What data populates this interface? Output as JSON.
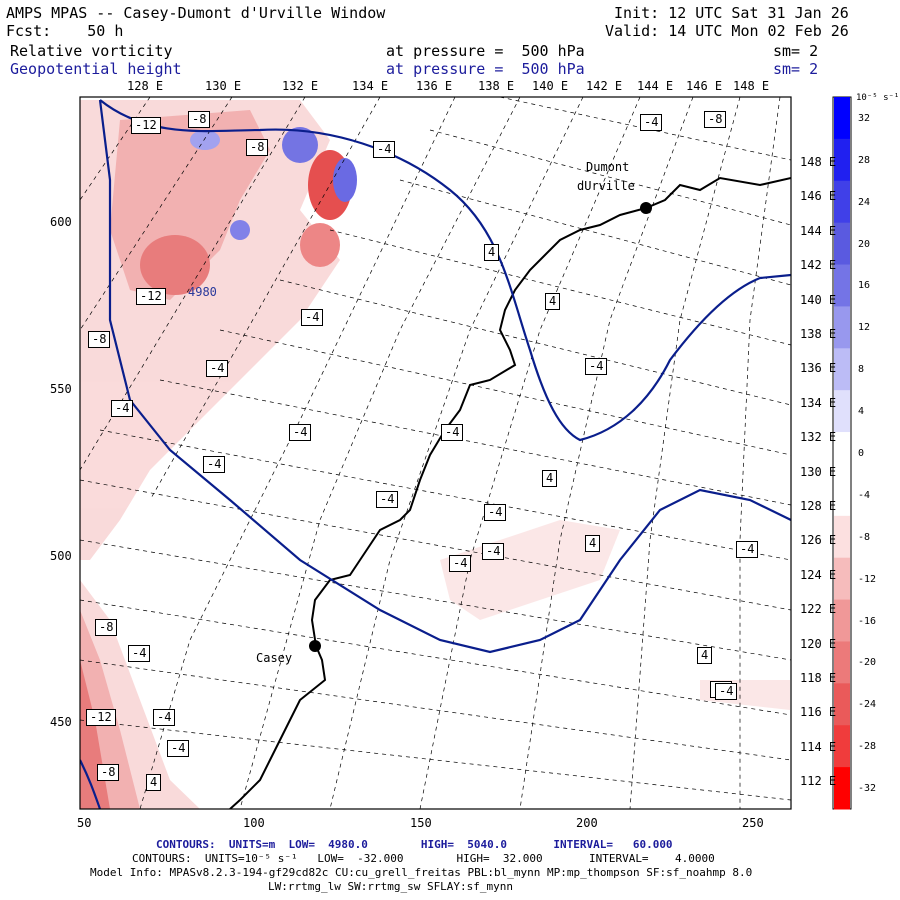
{
  "header": {
    "title": "AMPS MPAS -- Casey-Dumont d'Urville Window",
    "forecast": "Fcst:    50 h",
    "init": "Init: 12 UTC Sat 31 Jan 26",
    "valid": "Valid: 14 UTC Mon 02 Feb 26",
    "field1": {
      "name": "Relative vorticity",
      "level": "at pressure =  500 hPa",
      "smooth": "sm= 2"
    },
    "field2": {
      "name": "Geopotential height",
      "level": "at pressure =  500 hPa",
      "smooth": "sm= 2"
    }
  },
  "axes": {
    "top_lon_labels": [
      "128 E",
      "130 E",
      "132 E",
      "134 E",
      "136 E",
      "138 E",
      "140 E",
      "142 E",
      "144 E",
      "146 E",
      "148 E"
    ],
    "right_lon_labels": [
      "148 E",
      "146 E",
      "144 E",
      "142 E",
      "140 E",
      "138 E",
      "136 E",
      "134 E",
      "132 E",
      "130 E",
      "128 E",
      "126 E",
      "124 E",
      "122 E",
      "120 E",
      "118 E",
      "116 E",
      "114 E",
      "112 E"
    ],
    "left_ticks": [
      "600",
      "550",
      "500",
      "450"
    ],
    "bottom_ticks": [
      "50",
      "100",
      "150",
      "200",
      "250"
    ]
  },
  "map_labels": {
    "stations": [
      "Casey",
      "Dumont",
      "dUrville"
    ],
    "height_contour": "4980",
    "vorticity_labels": [
      "-12",
      "-8",
      "-8",
      "-4",
      "-4",
      "-8",
      "-12",
      "-8",
      "-4",
      "-4",
      "-4",
      "-4",
      "-4",
      "4",
      "4",
      "-4",
      "-4",
      "4",
      "-4",
      "-4",
      "-4",
      "4",
      "-4",
      "4",
      "-8",
      "-4",
      "-12",
      "-4",
      "-4",
      "-8",
      "4",
      "-4",
      "-4",
      "-4"
    ]
  },
  "colorbar": {
    "unit": "10⁻⁵ s⁻¹",
    "ticks": [
      "32",
      "28",
      "24",
      "20",
      "16",
      "12",
      "8",
      "4",
      "0",
      "-4",
      "-8",
      "-12",
      "-16",
      "-20",
      "-24",
      "-28",
      "-32"
    ],
    "colors": [
      "#0000ff",
      "#2020f0",
      "#4040e8",
      "#5a5ae0",
      "#7474e6",
      "#9898ee",
      "#bcbcf6",
      "#e0e0fc",
      "#ffffff",
      "#ffffff",
      "#fce0e0",
      "#f6bcbc",
      "#f09898",
      "#ec7a7a",
      "#ea5a5a",
      "#f03c3c",
      "#ff0000"
    ]
  },
  "footer": {
    "line1": "CONTOURS:  UNITS=m  LOW=  4980.0        HIGH=  5040.0       INTERVAL=   60.000",
    "line2": "CONTOURS:  UNITS=10⁻⁵ s⁻¹   LOW=  -32.000        HIGH=  32.000       INTERVAL=    4.0000",
    "line3": "Model Info: MPASv8.2.3-194-gf29cd82c CU:cu_grell_freitas PBL:bl_mynn MP:mp_thompson SF:sf_noahmp 8.0",
    "line4": "LW:rrtmg_lw SW:rrtmg_sw SFLAY:sf_mynn"
  }
}
